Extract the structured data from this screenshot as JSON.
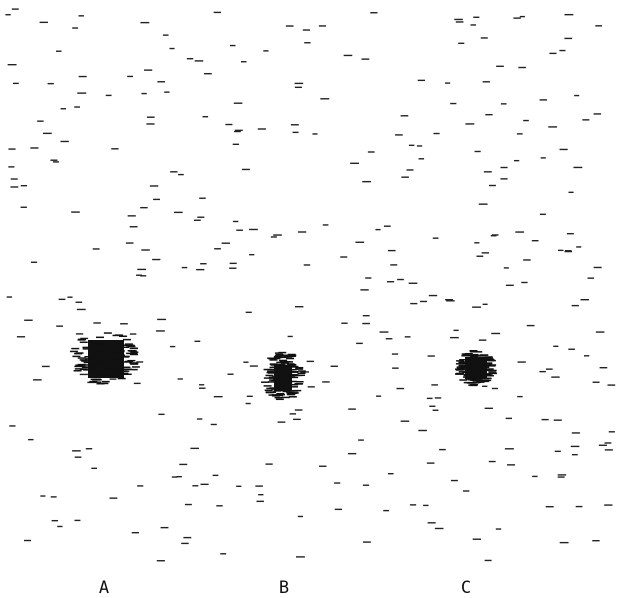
{
  "labels": [
    "A",
    "B",
    "C"
  ]
}
